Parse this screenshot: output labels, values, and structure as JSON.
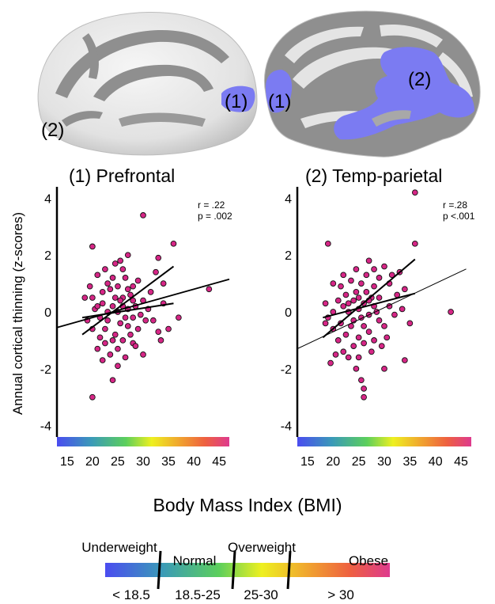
{
  "brain": {
    "medial_label_1": "(1)",
    "medial_label_2": "(2)",
    "lateral_label_1": "(1)",
    "lateral_label_2": "(2)",
    "highlight_color": "#7b7bf2"
  },
  "ylabel": "Annual cortical thinning (z-scores)",
  "xlabel": "Body Mass Index (BMI)",
  "chart_data": [
    {
      "type": "scatter",
      "title": "(1) Prefrontal",
      "stats": [
        "r = .22",
        "p = .002"
      ],
      "xlim": [
        13,
        47
      ],
      "ylim": [
        -4.4,
        4.4
      ],
      "xticks": [
        15,
        20,
        25,
        30,
        35,
        40,
        45
      ],
      "yticks": [
        -4,
        -2,
        0,
        2,
        4
      ],
      "point_color": "#d62686",
      "fit": {
        "slope": 0.05,
        "intercept": -1.2,
        "x_range": [
          13,
          47
        ]
      },
      "ci_upper": {
        "x": [
          18,
          36
        ],
        "y": [
          -0.8,
          1.6
        ]
      },
      "ci_lower": {
        "x": [
          18,
          36
        ],
        "y": [
          -0.2,
          0.3
        ]
      },
      "points": [
        [
          30,
          3.4
        ],
        [
          20,
          -3.0
        ],
        [
          20,
          2.3
        ],
        [
          36,
          2.4
        ],
        [
          27,
          2.0
        ],
        [
          33,
          1.9
        ],
        [
          24.5,
          1.7
        ],
        [
          25.5,
          1.8
        ],
        [
          43,
          0.8
        ],
        [
          34,
          0.3
        ],
        [
          35,
          -0.6
        ],
        [
          37,
          -0.2
        ],
        [
          33,
          -0.7
        ],
        [
          30,
          -1.5
        ],
        [
          28,
          -1.1
        ],
        [
          25,
          -1.9
        ],
        [
          24,
          -2.4
        ],
        [
          22,
          -1.7
        ],
        [
          21.5,
          -0.9
        ],
        [
          19,
          -0.3
        ],
        [
          18.5,
          0.5
        ],
        [
          20.5,
          0.1
        ],
        [
          21,
          1.3
        ],
        [
          22.5,
          1.5
        ],
        [
          23.5,
          0.8
        ],
        [
          24,
          1.2
        ],
        [
          25,
          0.9
        ],
        [
          26,
          0.5
        ],
        [
          26.5,
          1.2
        ],
        [
          27.5,
          0.6
        ],
        [
          28,
          0.9
        ],
        [
          28.5,
          0.2
        ],
        [
          29,
          1.1
        ],
        [
          29.5,
          -0.1
        ],
        [
          30,
          0.4
        ],
        [
          31,
          0.1
        ],
        [
          31.5,
          0.7
        ],
        [
          32,
          -0.3
        ],
        [
          23,
          -0.3
        ],
        [
          22.5,
          -0.6
        ],
        [
          24.5,
          -0.8
        ],
        [
          25.5,
          -0.4
        ],
        [
          26,
          -1.0
        ],
        [
          26.5,
          -0.2
        ],
        [
          27,
          -0.5
        ],
        [
          27.5,
          -0.8
        ],
        [
          22,
          0.3
        ],
        [
          23,
          0.0
        ],
        [
          24,
          0.2
        ],
        [
          25,
          0.0
        ],
        [
          26,
          0.2
        ],
        [
          27,
          0.1
        ],
        [
          28,
          -0.2
        ],
        [
          21,
          -1.3
        ],
        [
          20,
          -0.6
        ],
        [
          19.5,
          0.9
        ],
        [
          23.5,
          -1.5
        ],
        [
          25,
          -1.3
        ],
        [
          24,
          -1.0
        ],
        [
          22,
          0.7
        ],
        [
          21,
          0.2
        ],
        [
          20,
          0.5
        ],
        [
          29,
          -0.6
        ],
        [
          30.5,
          -0.3
        ],
        [
          32.5,
          1.4
        ],
        [
          34,
          1.0
        ],
        [
          26,
          1.5
        ],
        [
          23,
          1.0
        ],
        [
          24.5,
          0.5
        ],
        [
          25.5,
          0.4
        ],
        [
          27,
          0.8
        ],
        [
          28,
          0.4
        ],
        [
          21.5,
          -0.2
        ],
        [
          22.5,
          -1.1
        ],
        [
          26.5,
          -1.6
        ],
        [
          28.5,
          -1.2
        ],
        [
          33.5,
          -1.0
        ]
      ]
    },
    {
      "type": "scatter",
      "title": "(2) Temp-parietal",
      "stats": [
        "r =.28",
        "p <.001"
      ],
      "xlim": [
        13,
        47
      ],
      "ylim": [
        -4.4,
        4.4
      ],
      "xticks": [
        15,
        20,
        25,
        30,
        35,
        40,
        45
      ],
      "yticks": [
        -4,
        -2,
        0,
        2,
        4
      ],
      "point_color": "#d62686",
      "fit": {
        "slope": 0.085,
        "intercept": -2.4,
        "x_range": [
          13,
          46
        ]
      },
      "ci_upper": {
        "x": [
          18,
          36
        ],
        "y": [
          -0.9,
          1.85
        ]
      },
      "ci_lower": {
        "x": [
          18,
          36
        ],
        "y": [
          -0.2,
          0.65
        ]
      },
      "points": [
        [
          36,
          4.2
        ],
        [
          19,
          2.4
        ],
        [
          36,
          2.4
        ],
        [
          27,
          1.8
        ],
        [
          25.5,
          -2.4
        ],
        [
          26,
          -2.7
        ],
        [
          26,
          -3.0
        ],
        [
          30,
          -2.0
        ],
        [
          34,
          -1.7
        ],
        [
          43,
          0.0
        ],
        [
          35,
          -0.4
        ],
        [
          34,
          0.8
        ],
        [
          33,
          1.4
        ],
        [
          31,
          1.0
        ],
        [
          30,
          1.6
        ],
        [
          29,
          1.2
        ],
        [
          28,
          0.9
        ],
        [
          27.5,
          0.5
        ],
        [
          26.5,
          1.3
        ],
        [
          25.5,
          1.0
        ],
        [
          24.5,
          0.7
        ],
        [
          23.5,
          1.1
        ],
        [
          22.5,
          0.6
        ],
        [
          21.5,
          0.9
        ],
        [
          20,
          1.0
        ],
        [
          18.5,
          0.3
        ],
        [
          19,
          -0.2
        ],
        [
          20,
          -0.6
        ],
        [
          21,
          -1.0
        ],
        [
          22,
          -1.4
        ],
        [
          23,
          -1.6
        ],
        [
          24,
          -1.2
        ],
        [
          25,
          -0.9
        ],
        [
          26,
          -0.5
        ],
        [
          27,
          -0.7
        ],
        [
          28,
          -1.0
        ],
        [
          29,
          -0.3
        ],
        [
          30,
          -0.5
        ],
        [
          31,
          0.2
        ],
        [
          32,
          -0.1
        ],
        [
          22,
          0.2
        ],
        [
          23,
          0.0
        ],
        [
          24,
          -0.3
        ],
        [
          25,
          0.1
        ],
        [
          26,
          0.3
        ],
        [
          27,
          -0.1
        ],
        [
          28,
          0.2
        ],
        [
          29,
          0.5
        ],
        [
          21,
          0.4
        ],
        [
          20.5,
          -1.5
        ],
        [
          19.5,
          -1.8
        ],
        [
          23.5,
          -0.5
        ],
        [
          24.5,
          -2.0
        ],
        [
          25,
          -1.6
        ],
        [
          27.5,
          -1.4
        ],
        [
          30.5,
          -0.9
        ],
        [
          32.5,
          0.6
        ],
        [
          26.5,
          0.7
        ],
        [
          24,
          0.4
        ],
        [
          22.5,
          -0.8
        ],
        [
          21.5,
          -0.4
        ],
        [
          28.5,
          0.0
        ],
        [
          25.5,
          -0.2
        ],
        [
          26,
          -1.1
        ],
        [
          24.5,
          1.5
        ],
        [
          20,
          0.0
        ],
        [
          31.5,
          1.3
        ],
        [
          33.5,
          0.1
        ],
        [
          27,
          0.4
        ],
        [
          23,
          0.3
        ],
        [
          29.5,
          -1.2
        ],
        [
          18.5,
          -0.4
        ],
        [
          22,
          1.3
        ],
        [
          28,
          1.5
        ],
        [
          25,
          0.5
        ]
      ]
    }
  ],
  "legend": {
    "categories": [
      {
        "name": "Underweight",
        "range": "< 18.5"
      },
      {
        "name": "Normal",
        "range": "18.5-25"
      },
      {
        "name": "Overweight",
        "range": "25-30"
      },
      {
        "name": "Obese",
        "range": "> 30"
      }
    ],
    "gradient": [
      "#4a56f0",
      "#3aa0b0",
      "#5cd05a",
      "#f0f020",
      "#f0a030",
      "#f06040",
      "#e03a8c"
    ]
  }
}
